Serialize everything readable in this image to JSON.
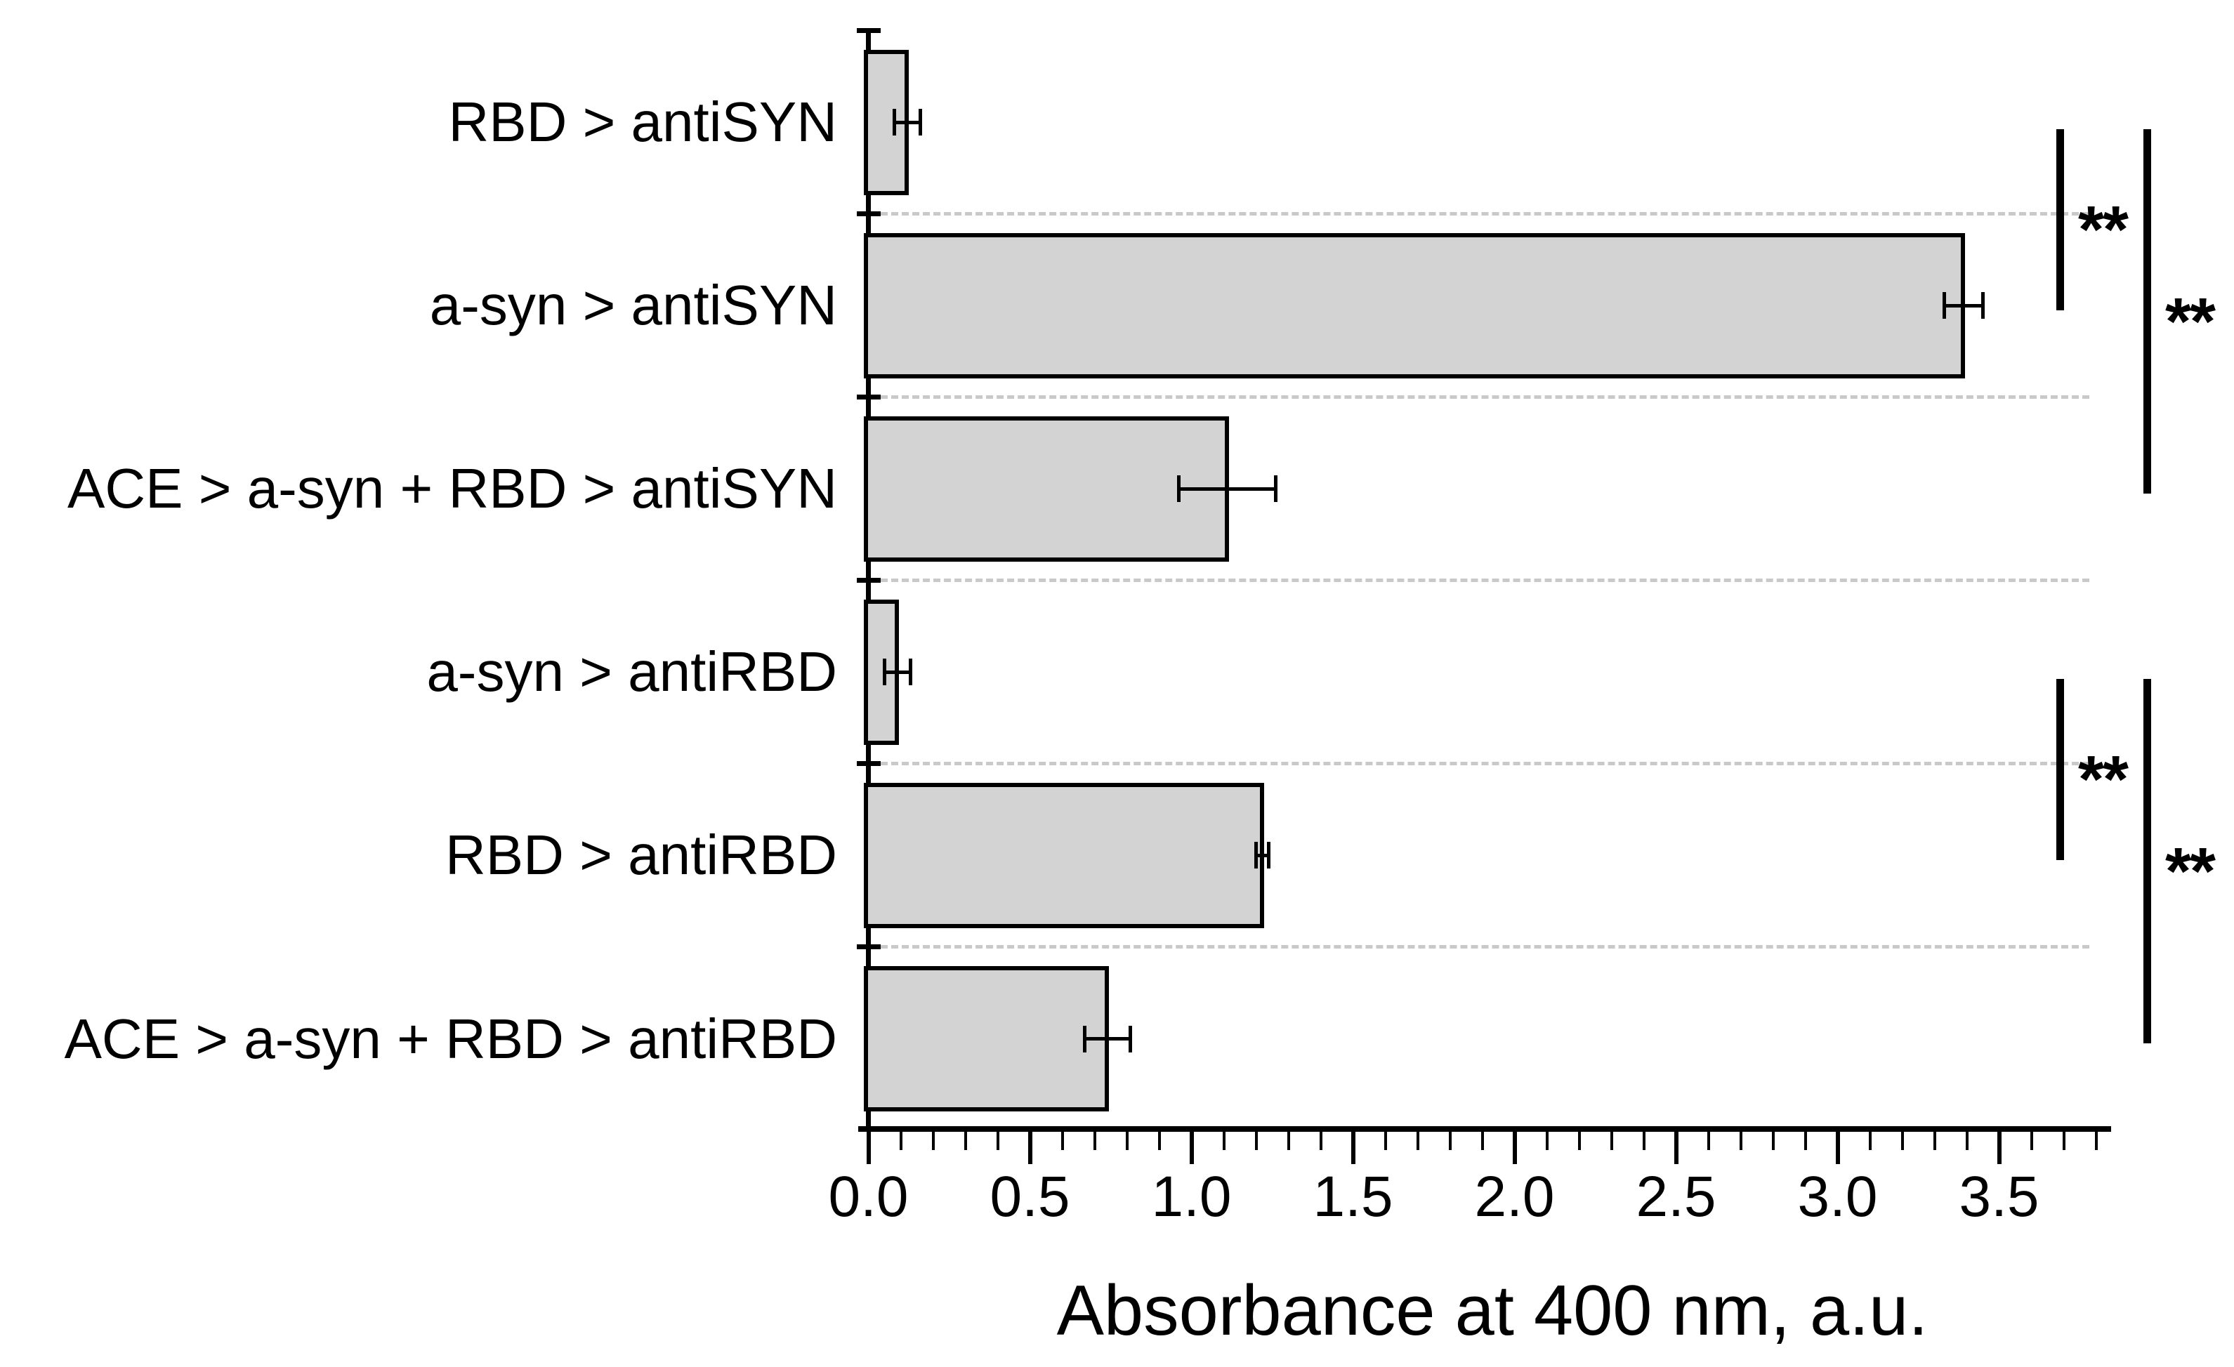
{
  "chart_data": {
    "type": "bar",
    "orientation": "horizontal",
    "title": "",
    "xlabel": "Absorbance at 400 nm, a.u.",
    "ylabel": "",
    "xlim": [
      0,
      3.85
    ],
    "xticks": [
      0.0,
      0.5,
      1.0,
      1.5,
      2.0,
      2.5,
      3.0,
      3.5
    ],
    "xtick_labels": [
      "0.0",
      "0.5",
      "1.0",
      "1.5",
      "2.0",
      "2.5",
      "3.0",
      "3.5"
    ],
    "minor_tick_step": 0.1,
    "legend": "none",
    "grid": "dashed horizontal separators between category rows",
    "bar_fill_color": "#d3d3d3",
    "bar_border_color": "#000000",
    "separator_color": "#c9c9c9",
    "categories": [
      "RBD > antiSYN",
      "a-syn > antiSYN",
      "ACE > a-syn + RBD > antiSYN",
      "a-syn > antiRBD",
      "RBD > antiRBD",
      "ACE > a-syn + RBD > antiRBD"
    ],
    "values": [
      0.12,
      3.39,
      1.11,
      0.09,
      1.22,
      0.74
    ],
    "errors": [
      0.04,
      0.06,
      0.15,
      0.04,
      0.02,
      0.07
    ],
    "significance": [
      {
        "from": 0,
        "to": 1,
        "label": "**"
      },
      {
        "from": 0,
        "to": 2,
        "label": "**"
      },
      {
        "from": 3,
        "to": 4,
        "label": "**"
      },
      {
        "from": 3,
        "to": 5,
        "label": "**"
      }
    ]
  }
}
